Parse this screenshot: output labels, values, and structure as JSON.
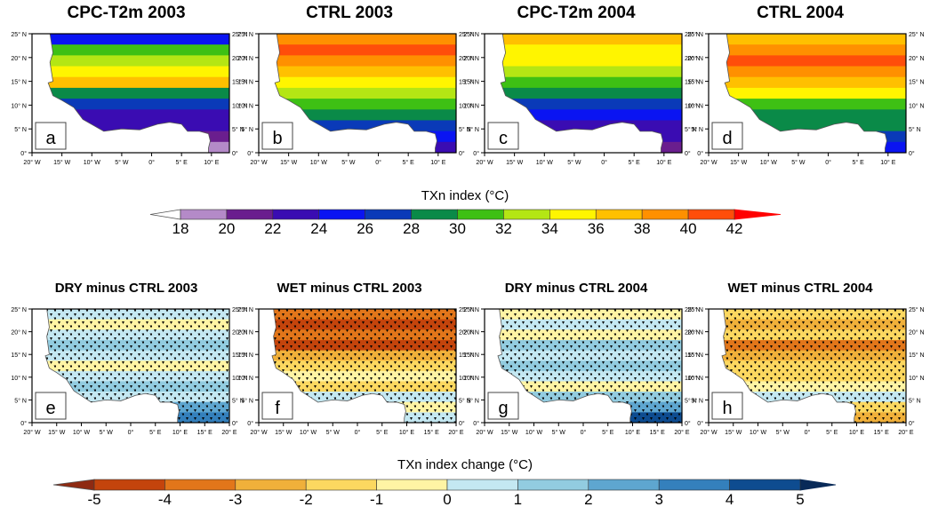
{
  "chart_data": [
    {
      "type": "heatmap",
      "panel": "a",
      "title": "CPC-T2m 2003",
      "variable": "TXn index",
      "units": "°C",
      "xticks": [
        "20° W",
        "15° W",
        "10° W",
        "5° W",
        "0°",
        "5° E",
        "10° E"
      ],
      "yticks": [
        "0°",
        "5° N",
        "10° N",
        "15° N",
        "20° N",
        "25° N"
      ],
      "xlim": [
        -20,
        13
      ],
      "ylim": [
        0,
        25
      ],
      "summary": "North (Sahara) 30-38°C, Sahel 26-30°C, Guinea coast 18-24°C",
      "bands": [
        24,
        30,
        32,
        34,
        36,
        28,
        26,
        22,
        22,
        20,
        18
      ]
    },
    {
      "type": "heatmap",
      "panel": "b",
      "title": "CTRL 2003",
      "variable": "TXn index",
      "units": "°C",
      "xticks": [
        "20° W",
        "15° W",
        "10° W",
        "5° W",
        "0°",
        "5° E",
        "10° E"
      ],
      "yticks": [
        "0°",
        "5° N",
        "10° N",
        "15° N",
        "20° N",
        "25° N"
      ],
      "xlim": [
        -20,
        13
      ],
      "ylim": [
        0,
        25
      ],
      "summary": "North 36-40°C, Sahel 32-34°C, south 24-28°C",
      "bands": [
        38,
        40,
        38,
        36,
        34,
        32,
        30,
        28,
        26,
        24,
        22
      ]
    },
    {
      "type": "heatmap",
      "panel": "c",
      "title": "CPC-T2m 2004",
      "variable": "TXn index",
      "units": "°C",
      "xticks": [
        "20° W",
        "15° W",
        "10° W",
        "5° W",
        "0°",
        "5° E",
        "10° E"
      ],
      "yticks": [
        "0°",
        "5° N",
        "10° N",
        "15° N",
        "20° N",
        "25° N"
      ],
      "xlim": [
        -20,
        13
      ],
      "ylim": [
        0,
        25
      ],
      "summary": "North 32-38°C, Sahel 28-30°C, coast 20-24°C",
      "bands": [
        36,
        34,
        34,
        32,
        30,
        28,
        26,
        24,
        22,
        22,
        20
      ]
    },
    {
      "type": "heatmap",
      "panel": "d",
      "title": "CTRL 2004",
      "variable": "TXn index",
      "units": "°C",
      "xticks": [
        "20° W",
        "15° W",
        "10° W",
        "5° W",
        "0°",
        "5° E",
        "10° E"
      ],
      "yticks": [
        "0°",
        "5° N",
        "10° N",
        "15° N",
        "20° N",
        "25° N"
      ],
      "xlim": [
        -20,
        13
      ],
      "ylim": [
        0,
        25
      ],
      "summary": "North 36-40°C, Sahel 32-36°C, south 26-30°C",
      "bands": [
        36,
        38,
        40,
        38,
        36,
        34,
        30,
        28,
        28,
        26,
        24
      ]
    },
    {
      "type": "heatmap",
      "panel": "e",
      "title": "DRY minus CTRL 2003",
      "variable": "TXn index change",
      "units": "°C",
      "xticks": [
        "20° W",
        "15° W",
        "10° W",
        "5° W",
        "0°",
        "5° E",
        "10° E",
        "15° E",
        "20° E"
      ],
      "yticks": [
        "0°",
        "5° N",
        "10° N",
        "15° N",
        "20° N",
        "25° N"
      ],
      "xlim": [
        -20,
        20
      ],
      "ylim": [
        0,
        25
      ],
      "stippled": true,
      "summary": "Mostly 0 to +2 (cooling/warming small), scattered -1 to 0",
      "bands": [
        0.5,
        -0.5,
        0.5,
        1.5,
        0.5,
        -0.5,
        0.5,
        1.5,
        0.5,
        2.5,
        3.5
      ]
    },
    {
      "type": "heatmap",
      "panel": "f",
      "title": "WET minus CTRL 2003",
      "variable": "TXn index change",
      "units": "°C",
      "xticks": [
        "20° W",
        "15° W",
        "10° W",
        "5° W",
        "0°",
        "5° E",
        "10° E",
        "15° E",
        "20° E"
      ],
      "yticks": [
        "0°",
        "5° N",
        "10° N",
        "15° N",
        "20° N",
        "25° N"
      ],
      "xlim": [
        -20,
        20
      ],
      "ylim": [
        0,
        25
      ],
      "stippled": true,
      "summary": "Strong negative -3 to -5 in Sahel/Sahara, -1 to 0 south",
      "bands": [
        -3.5,
        -4.5,
        -3.5,
        -4.5,
        -2.5,
        -1.5,
        -0.5,
        -1.5,
        0.5,
        -0.5,
        0.5
      ]
    },
    {
      "type": "heatmap",
      "panel": "g",
      "title": "DRY minus CTRL 2004",
      "variable": "TXn index change",
      "units": "°C",
      "xticks": [
        "20° W",
        "15° W",
        "10° W",
        "5° W",
        "0°",
        "5° E",
        "10° E",
        "15° E",
        "20° E"
      ],
      "yticks": [
        "0°",
        "5° N",
        "10° N",
        "15° N",
        "20° N",
        "25° N"
      ],
      "xlim": [
        -20,
        20
      ],
      "ylim": [
        0,
        25
      ],
      "stippled": true,
      "summary": "Mostly 0 to +2, small -1 to 0 patches",
      "bands": [
        -0.5,
        0.5,
        -0.5,
        1.5,
        0.5,
        1.5,
        0.5,
        -0.5,
        1.5,
        2.5,
        4.5
      ]
    },
    {
      "type": "heatmap",
      "panel": "h",
      "title": "WET minus CTRL 2004",
      "variable": "TXn index change",
      "units": "°C",
      "xticks": [
        "20° W",
        "15° W",
        "10° W",
        "5° W",
        "0°",
        "5° E",
        "10° E",
        "15° E",
        "20° E"
      ],
      "yticks": [
        "0°",
        "5° N",
        "10° N",
        "15° N",
        "20° N",
        "25° N"
      ],
      "xlim": [
        -20,
        20
      ],
      "ylim": [
        0,
        25
      ],
      "stippled": true,
      "summary": "Mostly -1 to -3, small 0 to +1 near coast",
      "bands": [
        -1.5,
        -2.5,
        -1.5,
        -3.5,
        -2.5,
        -1.5,
        -1.5,
        -0.5,
        0.5,
        -1.5,
        -2.5
      ]
    }
  ],
  "colorbars": {
    "top": {
      "title": "TXn index (°C)",
      "ticks": [
        "18",
        "20",
        "22",
        "24",
        "26",
        "28",
        "30",
        "32",
        "34",
        "36",
        "38",
        "40",
        "42"
      ],
      "under_color": "#ffffff",
      "colors": [
        "#b48ac8",
        "#6a1e8e",
        "#3a0cb2",
        "#0a14f2",
        "#0a3ab8",
        "#0a8a48",
        "#3ec014",
        "#b4e614",
        "#fff500",
        "#ffc000",
        "#ff9000",
        "#ff4e0a"
      ],
      "over_color": "#ff0000"
    },
    "bottom": {
      "title": "TXn index change (°C)",
      "ticks": [
        "-5",
        "-4",
        "-3",
        "-2",
        "-1",
        "0",
        "1",
        "2",
        "3",
        "4",
        "5"
      ],
      "under_color": "#8e2a12",
      "colors": [
        "#c4440c",
        "#e2761a",
        "#f0b03a",
        "#fcd860",
        "#fff4a4",
        "#c4e8f2",
        "#92cce0",
        "#5ea6d0",
        "#3480bc",
        "#0e4c90"
      ],
      "over_color": "#082a58"
    }
  },
  "panel_labels": [
    "a",
    "b",
    "c",
    "d",
    "e",
    "f",
    "g",
    "h"
  ],
  "top_titles": [
    "CPC-T2m 2003",
    "CTRL 2003",
    "CPC-T2m 2004",
    "CTRL 2004"
  ],
  "bottom_titles": [
    "DRY minus CTRL 2003",
    "WET minus CTRL 2003",
    "DRY minus CTRL 2004",
    "WET minus CTRL 2004"
  ]
}
